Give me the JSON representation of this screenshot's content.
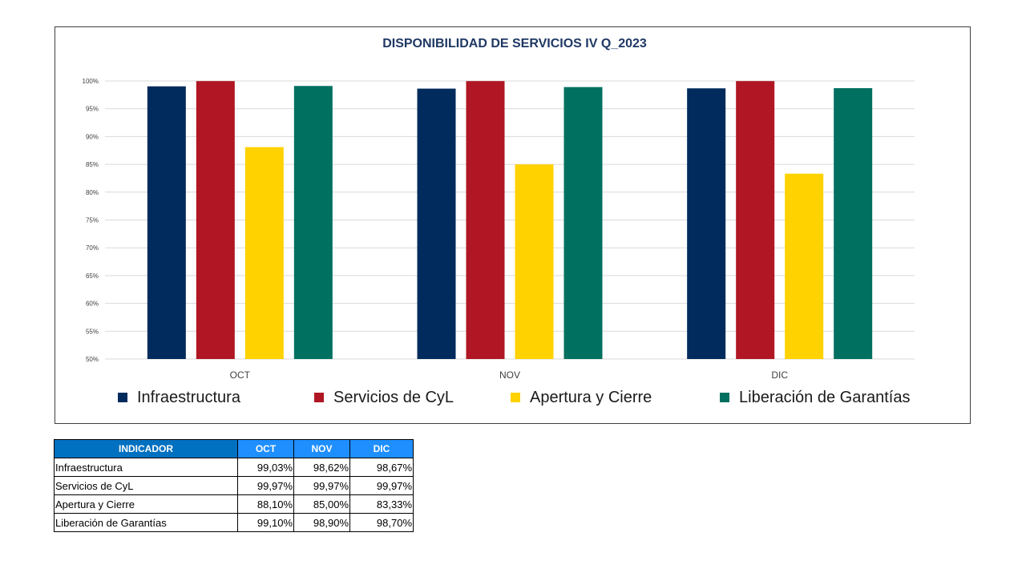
{
  "chart_data": {
    "type": "bar",
    "title": "DISPONIBILIDAD DE SERVICIOS IV Q_2023",
    "categories": [
      "OCT",
      "NOV",
      "DIC"
    ],
    "series": [
      {
        "name": "Infraestructura",
        "color": "#002b5c",
        "values": [
          99.03,
          98.62,
          98.67
        ]
      },
      {
        "name": "Servicios de CyL",
        "color": "#b01623",
        "values": [
          99.97,
          99.97,
          99.97
        ]
      },
      {
        "name": "Apertura y Cierre",
        "color": "#ffd200",
        "values": [
          88.1,
          85.0,
          83.33
        ]
      },
      {
        "name": "Liberación de Garantías",
        "color": "#007060",
        "values": [
          99.1,
          98.9,
          98.7
        ]
      }
    ],
    "ylim": [
      50,
      100
    ],
    "yticks": [
      "50%",
      "55%",
      "60%",
      "65%",
      "70%",
      "75%",
      "80%",
      "85%",
      "90%",
      "95%",
      "100%"
    ],
    "grid": true,
    "legend": "bottom"
  },
  "table": {
    "headers": [
      "INDICADOR",
      "OCT",
      "NOV",
      "DIC"
    ],
    "rows": [
      [
        "Infraestructura",
        "99,03%",
        "98,62%",
        "98,67%"
      ],
      [
        "Servicios de CyL",
        "99,97%",
        "99,97%",
        "99,97%"
      ],
      [
        "Apertura y Cierre",
        "88,10%",
        "85,00%",
        "83,33%"
      ],
      [
        "Liberación de Garantías",
        "99,10%",
        "98,90%",
        "98,70%"
      ]
    ]
  }
}
